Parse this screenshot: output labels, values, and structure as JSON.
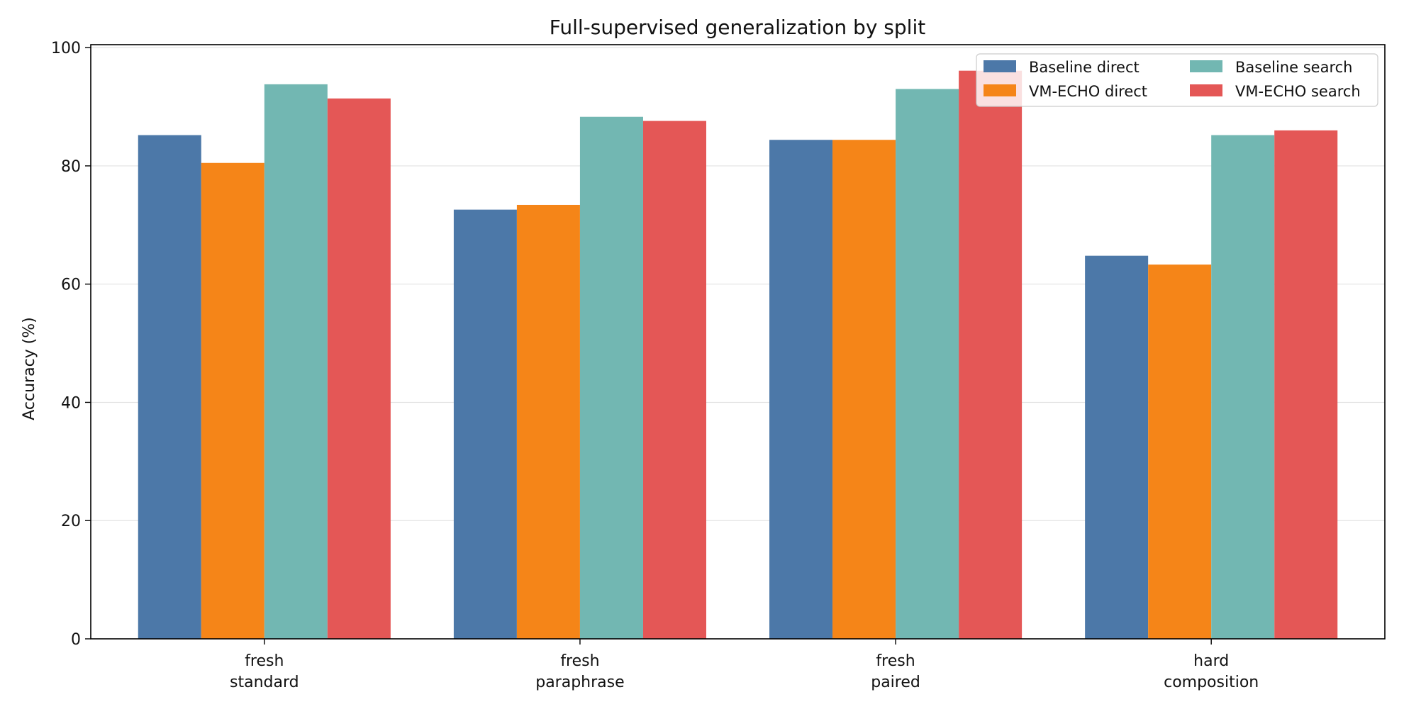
{
  "chart_data": {
    "type": "bar",
    "title": "Full-supervised generalization by split",
    "xlabel": "",
    "ylabel": "Accuracy (%)",
    "ylim": [
      0,
      100.5
    ],
    "yticks": [
      0,
      20,
      40,
      60,
      80,
      100
    ],
    "grid": "horizontal",
    "legend": {
      "placement": "top-right",
      "columns": 2
    },
    "categories": [
      [
        "fresh",
        "standard"
      ],
      [
        "fresh",
        "paraphrase"
      ],
      [
        "fresh",
        "paired"
      ],
      [
        "hard",
        "composition"
      ]
    ],
    "series": [
      {
        "name": "Baseline direct",
        "color": "#4c78a8",
        "values": [
          85.2,
          72.6,
          84.4,
          64.8
        ]
      },
      {
        "name": "VM-ECHO direct",
        "color": "#f58518",
        "values": [
          80.5,
          73.4,
          84.4,
          63.3
        ]
      },
      {
        "name": "Baseline search",
        "color": "#72b7b2",
        "values": [
          93.8,
          88.3,
          93.0,
          85.2
        ]
      },
      {
        "name": "VM-ECHO search",
        "color": "#e45756",
        "values": [
          91.4,
          87.6,
          96.1,
          86.0
        ]
      }
    ]
  }
}
